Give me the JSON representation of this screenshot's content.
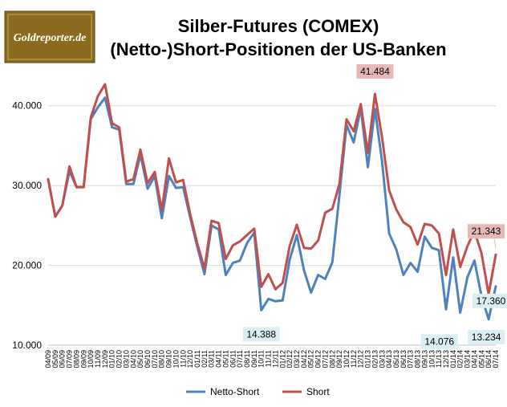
{
  "logo": {
    "text": "Goldreporter.de",
    "bg_color": "#8a6a1e"
  },
  "chart_data": {
    "type": "line",
    "title": "Silber-Futures (COMEX)",
    "subtitle": "(Netto-)Short-Positionen der US-Banken",
    "xlabel": "",
    "ylabel": "",
    "ylim": [
      10000,
      45000
    ],
    "yticks": [
      10000,
      20000,
      30000,
      40000
    ],
    "ytick_labels": [
      "10.000",
      "20.000",
      "30.000",
      "40.000"
    ],
    "grid": true,
    "legend_position": "bottom",
    "categories": [
      "04/09",
      "05/09",
      "06/09",
      "07/09",
      "08/09",
      "09/09",
      "10/09",
      "11/09",
      "12/09",
      "01/10",
      "02/10",
      "03/10",
      "04/10",
      "05/10",
      "06/10",
      "07/10",
      "08/10",
      "09/10",
      "10/10",
      "11/10",
      "12/10",
      "01/11",
      "02/11",
      "03/11",
      "04/11",
      "05/11",
      "06/11",
      "07/11",
      "08/11",
      "09/11",
      "10/11",
      "11/11",
      "12/11",
      "01/12",
      "02/12",
      "03/12",
      "04/12",
      "05/12",
      "06/12",
      "07/12",
      "08/12",
      "09/12",
      "10/12",
      "11/12",
      "12/12",
      "01/13",
      "02/13",
      "03/13",
      "04/13",
      "05/13",
      "06/13",
      "07/13",
      "08/13",
      "09/13",
      "10/13",
      "11/13",
      "12/13",
      "01/14",
      "02/14",
      "03/14",
      "04/14",
      "05/14",
      "06/14",
      "07/14"
    ],
    "x_tick_labels": [
      "04/09",
      "05/09",
      "06/09",
      "07/09",
      "08/09",
      "09/09",
      "10/09",
      "11/09",
      "12/09",
      "01/10",
      "02/10",
      "03/10",
      "04/10",
      "05/10",
      "06/10",
      "07/10",
      "08/10",
      "09/10",
      "10/10",
      "11/10",
      "12/10",
      "01/11",
      "02/11",
      "03/11",
      "04/11",
      "05/11",
      "06/11",
      "07/11",
      "08/11",
      "09/11",
      "10/11",
      "11/11",
      "12/11",
      "01/12",
      "02/12",
      "03/12",
      "04/12",
      "05/12",
      "06/12",
      "07/12",
      "08/12",
      "09/12",
      "10/12",
      "11/12",
      "12/12",
      "01/13",
      "02/13",
      "03/13",
      "04/13",
      "05/13",
      "06/13",
      "07/13",
      "08/13",
      "09/13",
      "10/13",
      "11/13",
      "12/13",
      "01/14",
      "02/14",
      "03/14",
      "04/14",
      "05/14",
      "06/14",
      "07/14"
    ],
    "series": [
      {
        "name": "Netto-Short",
        "color": "#4f81bd",
        "values": [
          30800,
          26100,
          27500,
          31800,
          29800,
          29800,
          38300,
          39800,
          41000,
          37300,
          37000,
          30200,
          30200,
          33900,
          29600,
          31200,
          25900,
          31200,
          29700,
          29800,
          26000,
          22300,
          18900,
          25000,
          24500,
          18800,
          20300,
          20600,
          22800,
          24100,
          14388,
          15800,
          15500,
          15600,
          20700,
          23800,
          19400,
          16600,
          18800,
          18300,
          20400,
          28800,
          37600,
          35400,
          39700,
          32300,
          39600,
          33000,
          24000,
          22000,
          18800,
          20300,
          19200,
          23600,
          22200,
          21900,
          14500,
          21000,
          14076,
          18500,
          20600,
          16100,
          13234,
          17360
        ]
      },
      {
        "name": "Short",
        "color": "#c0504d",
        "values": [
          30800,
          26100,
          27500,
          32400,
          29800,
          29800,
          38500,
          41200,
          42700,
          37800,
          37300,
          30500,
          30800,
          34500,
          30300,
          31700,
          26900,
          33400,
          30400,
          30700,
          26400,
          22700,
          19600,
          25600,
          25300,
          20800,
          22500,
          23000,
          23800,
          24600,
          17300,
          18900,
          17000,
          17800,
          22400,
          25100,
          22200,
          22100,
          23100,
          26600,
          27100,
          30200,
          38300,
          36800,
          40200,
          34100,
          41484,
          36000,
          29400,
          27000,
          25400,
          24800,
          22600,
          25200,
          25000,
          24000,
          18800,
          24500,
          19800,
          22400,
          24300,
          21500,
          16400,
          21343
        ]
      }
    ],
    "annotations": [
      {
        "text": "41.484",
        "series": "Short",
        "category": "02/13",
        "value": 41484,
        "bg": "#e6b9b8"
      },
      {
        "text": "14.388",
        "series": "Netto-Short",
        "category": "10/11",
        "value": 14388,
        "bg": "#dbeef4"
      },
      {
        "text": "14.076",
        "series": "Netto-Short",
        "category": "02/14",
        "value": 14076,
        "bg": "#dbeef4"
      },
      {
        "text": "17.360",
        "series": "Netto-Short",
        "category": "07/14",
        "value": 17360,
        "bg": "#dbeef4"
      },
      {
        "text": "21.343",
        "series": "Short",
        "category": "07/14",
        "value": 21343,
        "bg": "#e6b9b8"
      },
      {
        "text": "13.234",
        "series": "Netto-Short",
        "category": "06/14",
        "value": 13234,
        "bg": "#dbeef4"
      }
    ],
    "grid_color": "#d9d9d9"
  }
}
